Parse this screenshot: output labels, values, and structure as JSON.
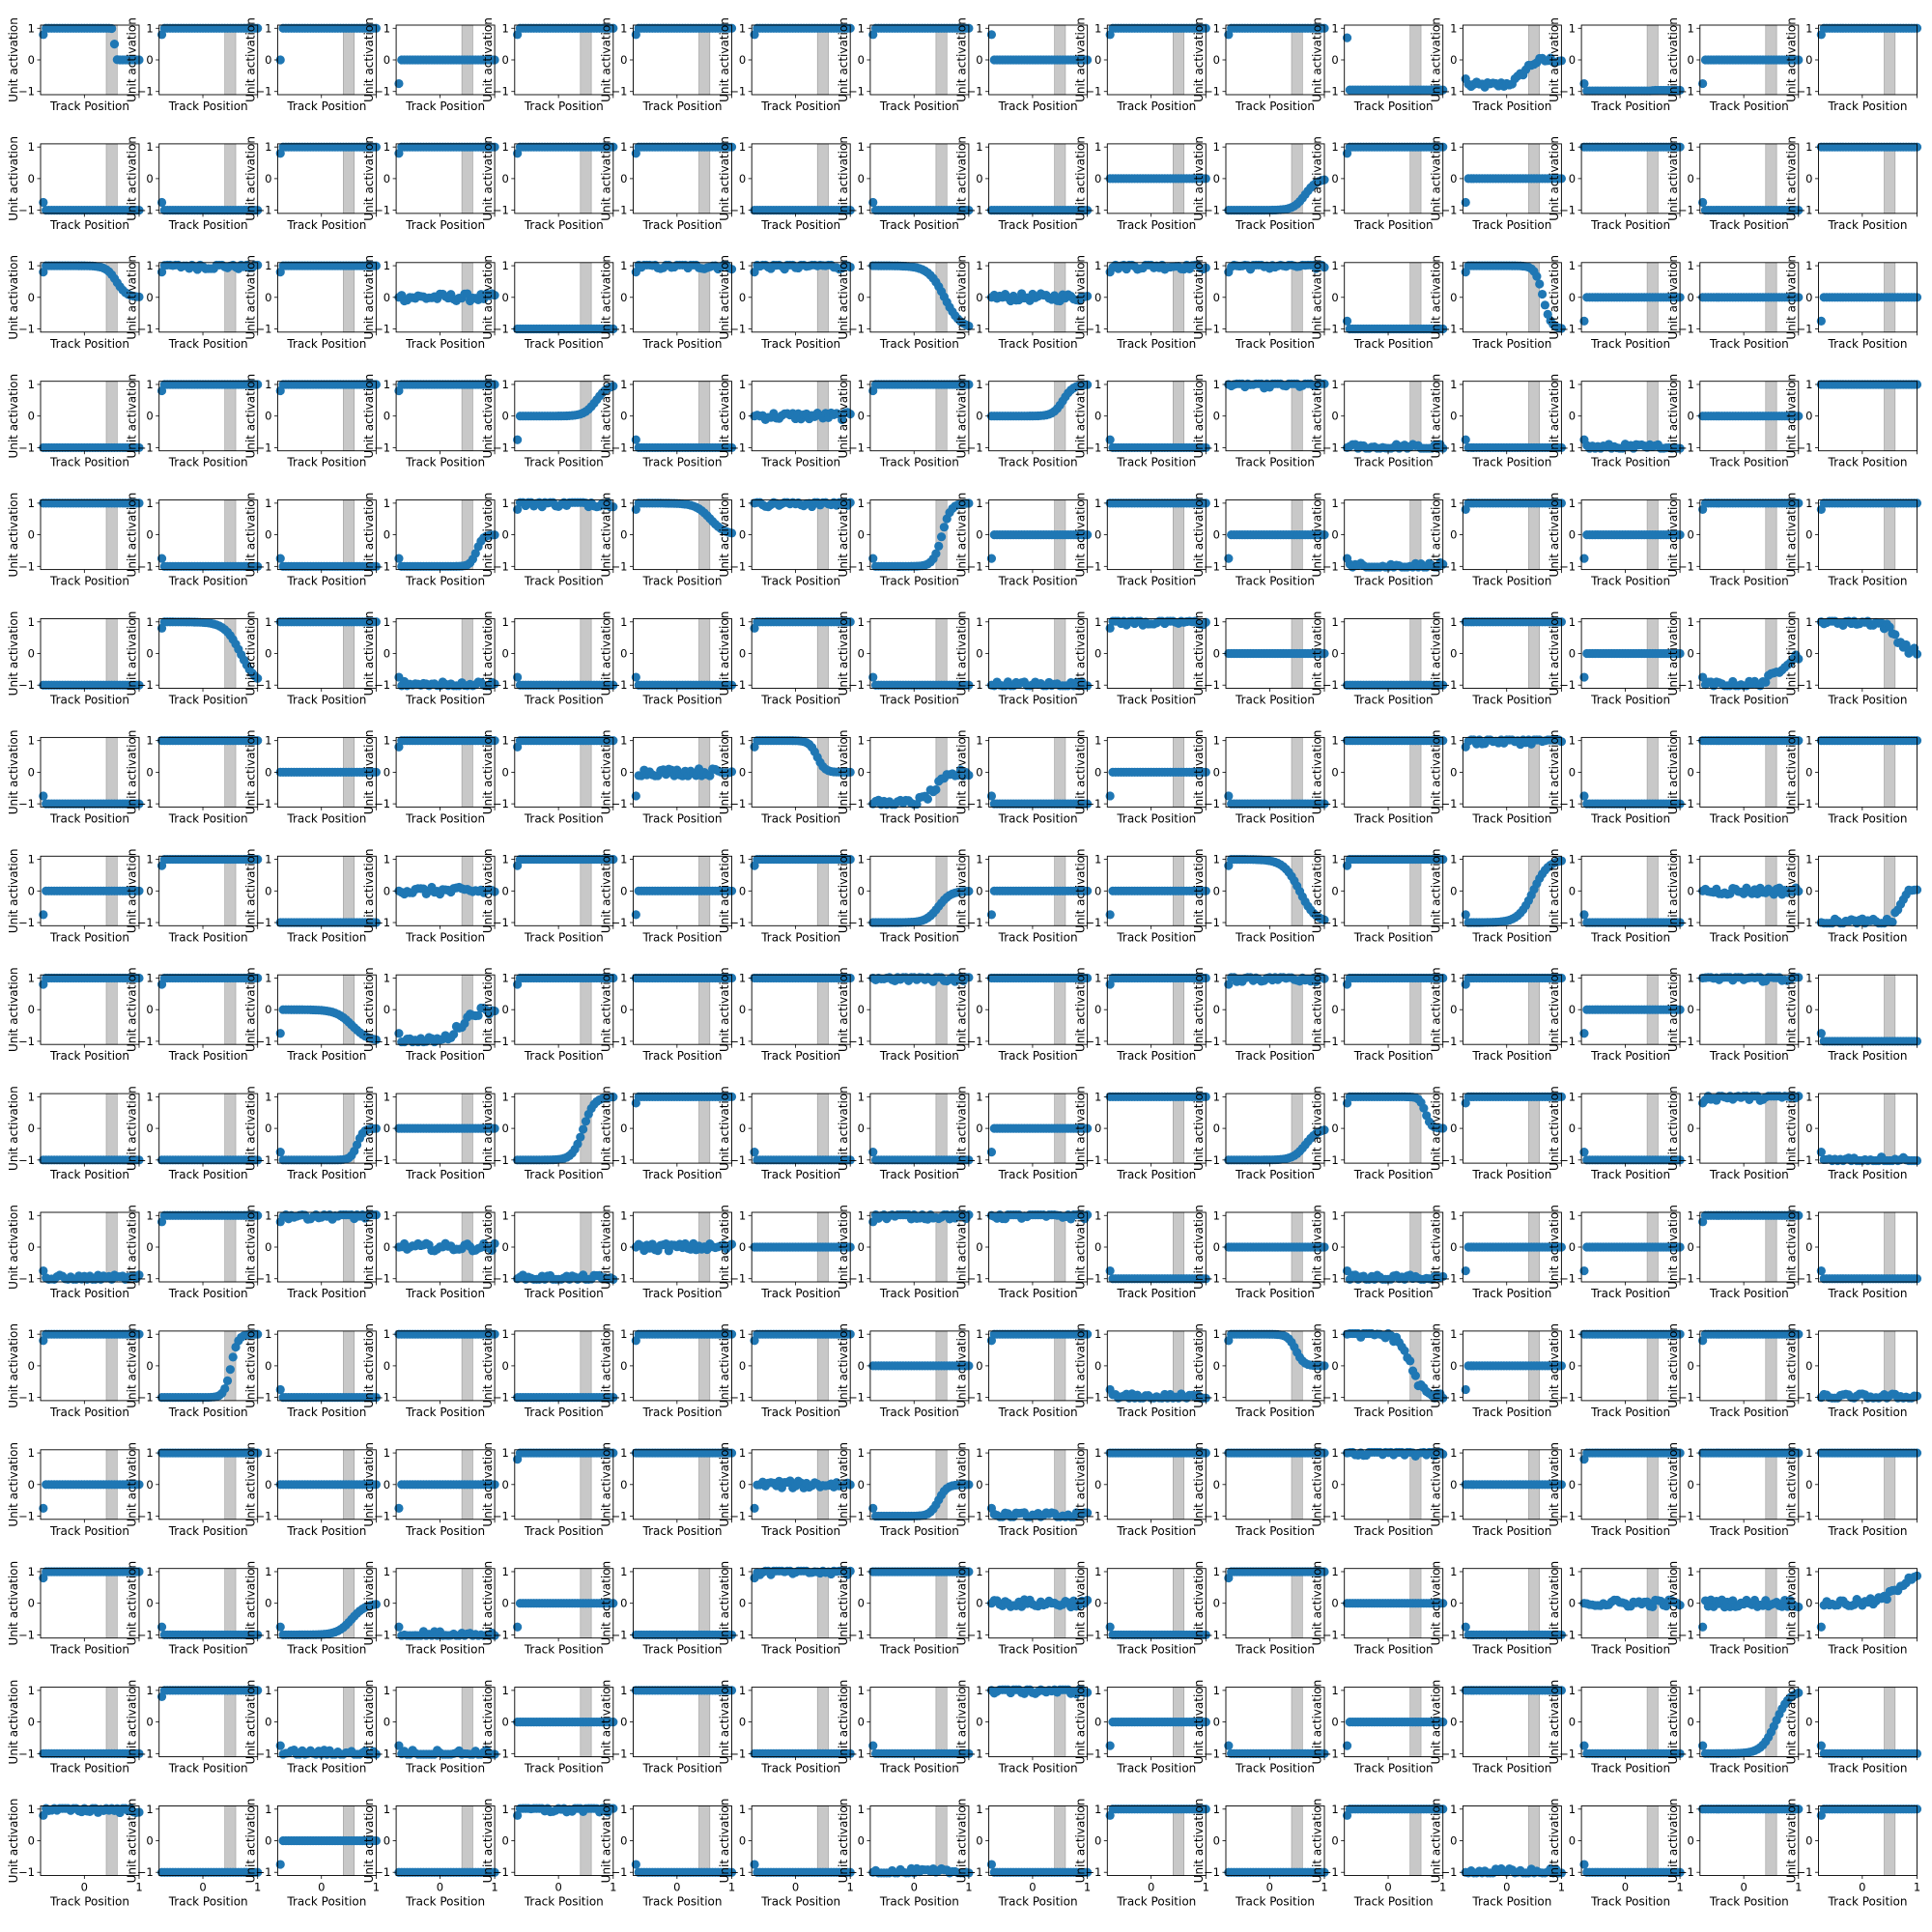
{
  "figure": {
    "rows": 16,
    "cols": 16,
    "colors": {
      "series": "#1f77b4",
      "band": "#c8c8c8",
      "axes": "#000000",
      "background": "#ffffff"
    }
  },
  "chart_data": {
    "type": "scatter",
    "panel_count": 256,
    "xlabel": "Track Position",
    "ylabel": "Unit activation",
    "xlim": [
      -0.8,
      1.0
    ],
    "ylim": [
      -1.1,
      1.1
    ],
    "xticks": [
      0,
      1
    ],
    "xtick_labels": [
      "0",
      "1"
    ],
    "xtick_labels_visible_on": "bottom row only",
    "yticks": [
      -1,
      0,
      1
    ],
    "ytick_labels": [
      "−1",
      "0",
      "1"
    ],
    "shaded_band": [
      0.4,
      0.6
    ],
    "grid": false,
    "legend": "none",
    "x": [
      -0.75,
      -0.7,
      -0.65,
      -0.6,
      -0.55,
      -0.5,
      -0.45,
      -0.4,
      -0.35,
      -0.3,
      -0.25,
      -0.2,
      -0.15,
      -0.1,
      -0.05,
      0,
      0.05,
      0.1,
      0.15,
      0.2,
      0.25,
      0.3,
      0.35,
      0.4,
      0.45,
      0.5,
      0.55,
      0.6,
      0.65,
      0.7,
      0.75,
      0.8,
      0.85,
      0.9,
      0.95,
      1.0
    ],
    "panel_shapes": [
      {
        "s": 1,
        "f": 0,
        "c": 0.55,
        "st": 0,
        "j": 0,
        "first": 0.8
      },
      {
        "s": 1,
        "f": 1,
        "c": 0.5,
        "st": 0,
        "j": 0,
        "first": 0.8
      },
      {
        "s": 1,
        "f": 1,
        "c": 0.5,
        "st": 0,
        "j": 0,
        "first": 0
      },
      {
        "s": 0,
        "f": 0,
        "c": 0.5,
        "st": 0,
        "j": 0,
        "first": -0.75
      },
      {
        "s": 1,
        "f": 1,
        "c": 0.5,
        "st": 0,
        "j": 0,
        "first": 0.8
      },
      {
        "s": 1,
        "f": 1,
        "c": 0.5,
        "st": 0,
        "j": 0,
        "first": 0.8
      },
      {
        "s": 1,
        "f": 1,
        "c": 0.5,
        "st": 0,
        "j": 0,
        "first": 0.8
      },
      {
        "s": 1,
        "f": 1,
        "c": 0.5,
        "st": 0,
        "j": 0,
        "first": 0.8
      },
      {
        "s": 0,
        "f": 0,
        "c": 0.5,
        "st": 0,
        "j": 0,
        "first": 0.8
      },
      {
        "s": 1,
        "f": 1,
        "c": 0.5,
        "st": 0,
        "j": 0,
        "first": 0.8
      },
      {
        "s": 1,
        "f": 1,
        "c": 0.5,
        "st": 0,
        "j": 0,
        "first": 0.8
      },
      {
        "s": -0.95,
        "f": -0.95,
        "c": 0.5,
        "st": 0,
        "j": 0,
        "first": 0.7
      },
      {
        "s": -0.8,
        "f": 0,
        "c": 0.3,
        "st": 0.1,
        "j": 0.1,
        "first": -0.6
      },
      {
        "s": -0.98,
        "f": -0.96,
        "c": 0.5,
        "st": 0,
        "j": 0,
        "first": -0.75
      },
      {
        "s": 0,
        "f": 0,
        "c": 0.5,
        "st": 0,
        "j": 0,
        "first": -0.75
      },
      {
        "s": 1,
        "f": 1,
        "c": 0.5,
        "st": 0,
        "j": 0,
        "first": 0.8
      }
    ]
  }
}
